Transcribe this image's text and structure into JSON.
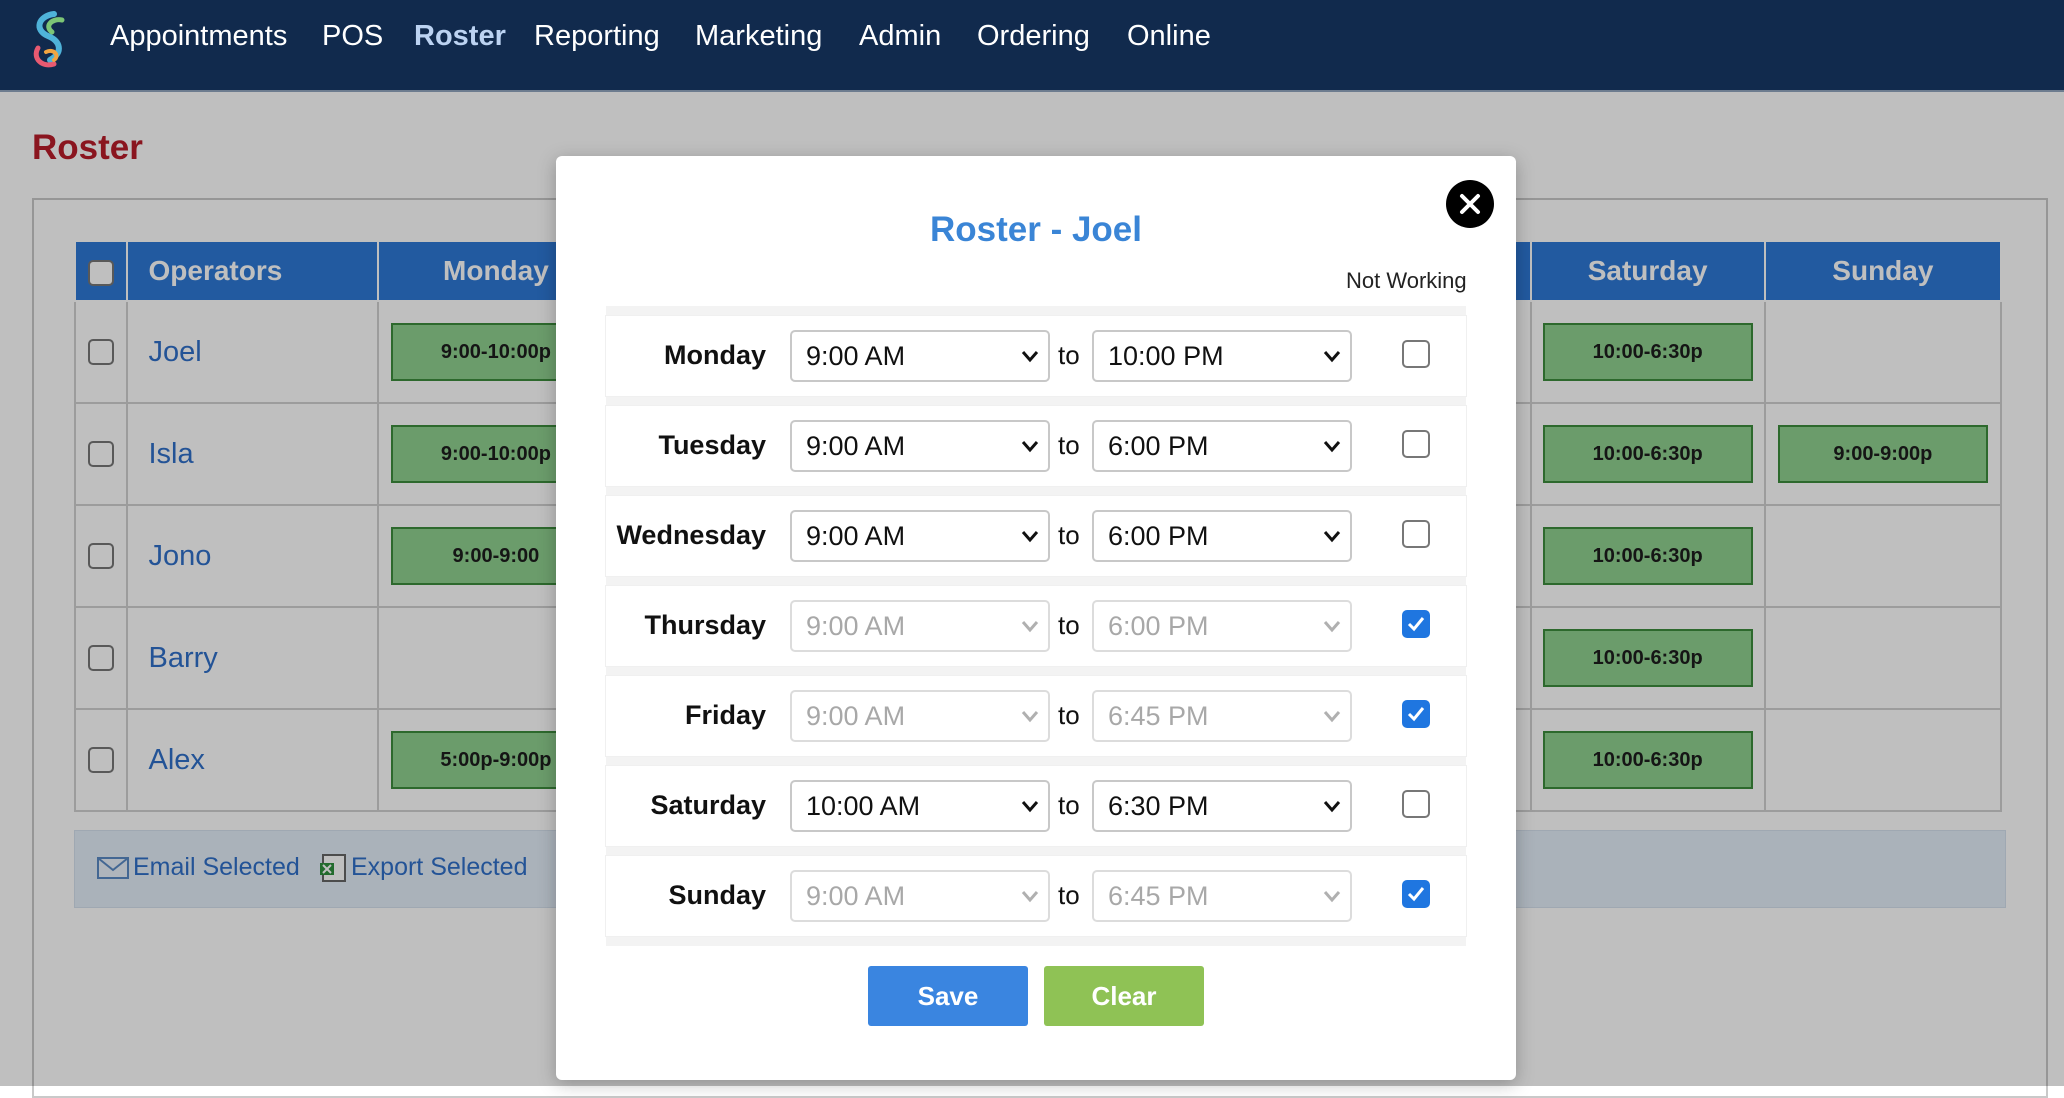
{
  "nav": {
    "items": [
      "Appointments",
      "POS",
      "Roster",
      "Reporting",
      "Marketing",
      "Admin",
      "Ordering",
      "Online"
    ],
    "active": "Roster"
  },
  "page": {
    "title": "Roster"
  },
  "grid": {
    "headers": {
      "operators": "Operators",
      "monday": "Monday",
      "saturday": "Saturday",
      "sunday": "Sunday"
    },
    "rows": [
      {
        "name": "Joel",
        "monday": "9:00-10:00p",
        "saturday": "10:00-6:30p",
        "sunday": ""
      },
      {
        "name": "Isla",
        "monday": "9:00-10:00p",
        "saturday": "10:00-6:30p",
        "sunday": "9:00-9:00p"
      },
      {
        "name": "Jono",
        "monday": "9:00-9:00",
        "saturday": "10:00-6:30p",
        "sunday": ""
      },
      {
        "name": "Barry",
        "monday": "",
        "saturday": "10:00-6:30p",
        "sunday": ""
      },
      {
        "name": "Alex",
        "monday": "5:00p-9:00p",
        "saturday": "10:00-6:30p",
        "sunday": ""
      }
    ]
  },
  "actions": {
    "email": "Email Selected",
    "export": "Export Selected"
  },
  "modal": {
    "title": "Roster - Joel",
    "not_working_label": "Not Working",
    "to_word": "to",
    "days": [
      {
        "day": "Monday",
        "from": "9:00 AM",
        "to": "10:00 PM",
        "not_working": false
      },
      {
        "day": "Tuesday",
        "from": "9:00 AM",
        "to": "6:00 PM",
        "not_working": false
      },
      {
        "day": "Wednesday",
        "from": "9:00 AM",
        "to": "6:00 PM",
        "not_working": false
      },
      {
        "day": "Thursday",
        "from": "9:00 AM",
        "to": "6:00 PM",
        "not_working": true
      },
      {
        "day": "Friday",
        "from": "9:00 AM",
        "to": "6:45 PM",
        "not_working": true
      },
      {
        "day": "Saturday",
        "from": "10:00 AM",
        "to": "6:30 PM",
        "not_working": false
      },
      {
        "day": "Sunday",
        "from": "9:00 AM",
        "to": "6:45 PM",
        "not_working": true
      }
    ],
    "save_label": "Save",
    "clear_label": "Clear",
    "close_icon": "close-icon"
  },
  "colors": {
    "nav_bg": "#112a4d",
    "header_blue": "#2e78d6",
    "title_red": "#b81d2a",
    "shift_green": "#8fd08f",
    "save_blue": "#3a85e0",
    "clear_green": "#8fc255"
  }
}
